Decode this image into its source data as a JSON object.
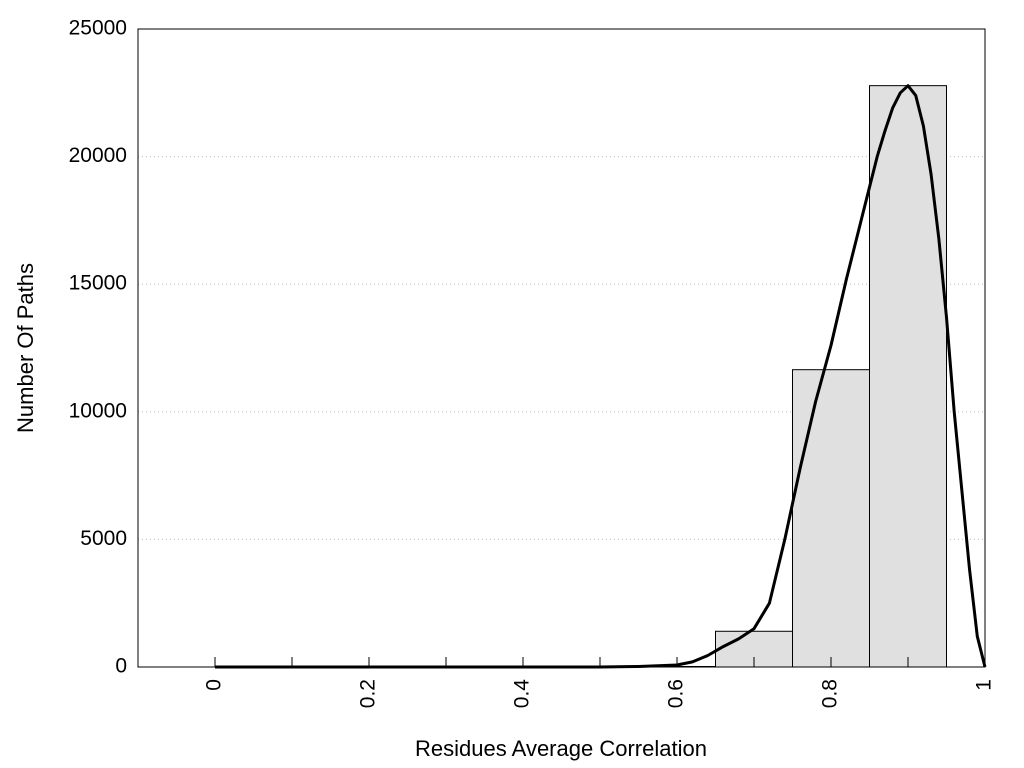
{
  "chart_data": {
    "type": "bar",
    "title": "",
    "xlabel": "Residues Average Correlation",
    "ylabel": "Number Of Paths",
    "xlim": [
      -0.1,
      1.0
    ],
    "ylim": [
      0,
      25000
    ],
    "x_ticks": [
      0,
      0.2,
      0.4,
      0.6,
      0.8,
      1
    ],
    "x_tick_labels": [
      "0",
      "0.2",
      "0.4",
      "0.6",
      "0.8",
      "1"
    ],
    "x_minor_ticks": [
      0.1,
      0.3,
      0.5,
      0.7,
      0.9
    ],
    "y_ticks": [
      0,
      5000,
      10000,
      15000,
      20000,
      25000
    ],
    "y_tick_labels": [
      "0",
      "5000",
      "10000",
      "15000",
      "20000",
      "25000"
    ],
    "grid": "horizontal dotted",
    "bins": [
      {
        "x0": 0.0,
        "x1": 0.65,
        "value": 0
      },
      {
        "x0": 0.65,
        "x1": 0.75,
        "value": 1400
      },
      {
        "x0": 0.75,
        "x1": 0.85,
        "value": 11650
      },
      {
        "x0": 0.85,
        "x1": 0.95,
        "value": 22780
      }
    ],
    "fit_curve": {
      "x": [
        0.0,
        0.3,
        0.5,
        0.55,
        0.6,
        0.62,
        0.64,
        0.66,
        0.68,
        0.7,
        0.72,
        0.74,
        0.76,
        0.78,
        0.8,
        0.82,
        0.84,
        0.86,
        0.87,
        0.88,
        0.89,
        0.9,
        0.91,
        0.92,
        0.93,
        0.94,
        0.95,
        0.96,
        0.97,
        0.98,
        0.99,
        1.0
      ],
      "y": [
        0,
        0,
        0,
        20,
        80,
        200,
        450,
        800,
        1100,
        1500,
        2500,
        5000,
        7800,
        10400,
        12600,
        15200,
        17600,
        20000,
        21000,
        21900,
        22500,
        22780,
        22400,
        21200,
        19300,
        16800,
        13700,
        10000,
        6900,
        3800,
        1200,
        0
      ]
    },
    "colors": {
      "bar_fill": "#e0e0e0",
      "bar_stroke": "#000000",
      "curve": "#000000",
      "grid": "#bbbbbb"
    }
  }
}
